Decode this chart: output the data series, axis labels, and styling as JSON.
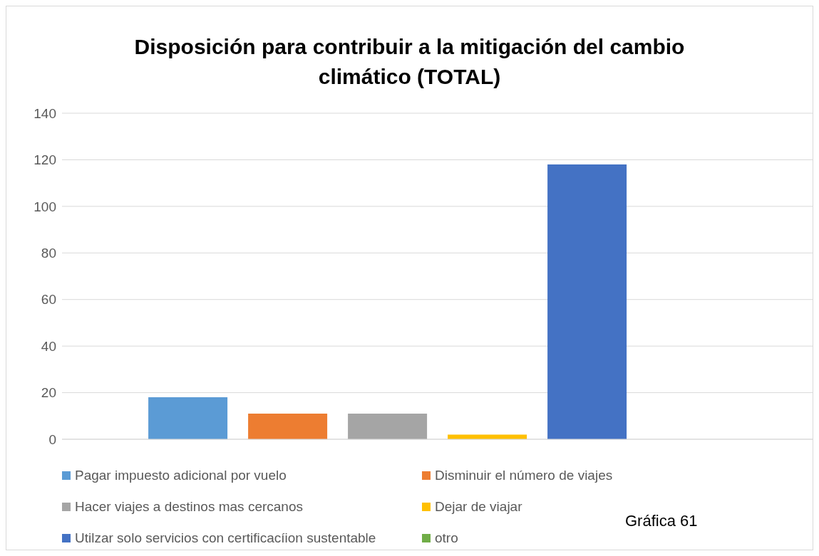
{
  "chart_data": {
    "type": "bar",
    "title": "Disposición para contribuir a la mitigación del cambio climático (TOTAL)",
    "categories": [
      null
    ],
    "series": [
      {
        "name": "Pagar impuesto adicional por vuelo",
        "color": "#5b9bd5",
        "values": [
          18
        ]
      },
      {
        "name": "Disminuir el número de viajes",
        "color": "#ed7d31",
        "values": [
          11
        ]
      },
      {
        "name": "Hacer viajes a destinos mas cercanos",
        "color": "#a5a5a5",
        "values": [
          11
        ]
      },
      {
        "name": "Dejar de viajar",
        "color": "#ffc000",
        "values": [
          2
        ]
      },
      {
        "name": "Utilzar solo servicios con certificacíion sustentable",
        "color": "#4472c4",
        "values": [
          118
        ]
      },
      {
        "name": "otro",
        "color": "#70ad47",
        "values": [
          0
        ]
      }
    ],
    "ylim": [
      0,
      140
    ],
    "yticks": [
      0,
      20,
      40,
      60,
      80,
      100,
      120,
      140
    ],
    "grid": "y",
    "legend": "bottom",
    "tick_labels": "y",
    "annotations": [
      "Gráfica 61"
    ]
  }
}
